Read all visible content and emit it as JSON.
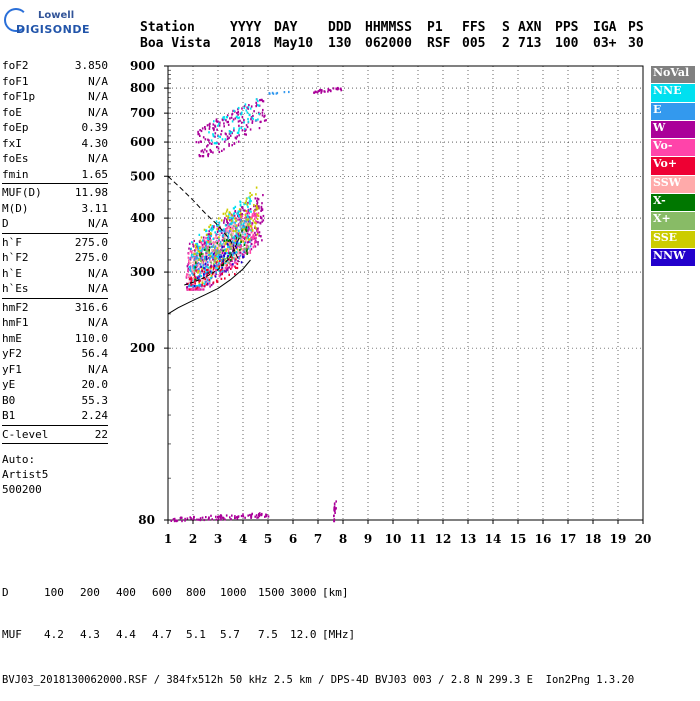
{
  "logo": {
    "line1": "Lowell",
    "line2": "DIGISONDE"
  },
  "header": {
    "labels": [
      "Station",
      "YYYY",
      "DAY",
      "DDD",
      "HHMMSS",
      "P1",
      "FFS",
      "S",
      "AXN",
      "PPS",
      "IGA",
      "PS"
    ],
    "values": [
      "Boa Vista",
      "2018",
      "May10",
      "130",
      "062000",
      "RSF",
      "005",
      "2",
      "713",
      "100",
      "03+",
      "30"
    ]
  },
  "params_group1": [
    {
      "name": "foF2",
      "value": "3.850"
    },
    {
      "name": "foF1",
      "value": "N/A"
    },
    {
      "name": "foF1p",
      "value": "N/A"
    },
    {
      "name": "foE",
      "value": "N/A"
    },
    {
      "name": "foEp",
      "value": "0.39"
    },
    {
      "name": "fxI",
      "value": "4.30"
    },
    {
      "name": "foEs",
      "value": "N/A"
    },
    {
      "name": "fmin",
      "value": "1.65"
    }
  ],
  "params_group2": [
    {
      "name": "MUF(D)",
      "value": "11.98"
    },
    {
      "name": "M(D)",
      "value": "3.11"
    },
    {
      "name": "D",
      "value": "N/A"
    }
  ],
  "params_group3": [
    {
      "name": "h`F",
      "value": "275.0"
    },
    {
      "name": "h`F2",
      "value": "275.0"
    },
    {
      "name": "h`E",
      "value": "N/A"
    },
    {
      "name": "h`Es",
      "value": "N/A"
    }
  ],
  "params_group4": [
    {
      "name": "hmF2",
      "value": "316.6"
    },
    {
      "name": "hmF1",
      "value": "N/A"
    },
    {
      "name": "hmE",
      "value": "110.0"
    },
    {
      "name": "yF2",
      "value": "56.4"
    },
    {
      "name": "yF1",
      "value": "N/A"
    },
    {
      "name": "yE",
      "value": "20.0"
    },
    {
      "name": "B0",
      "value": "55.3"
    },
    {
      "name": "B1",
      "value": "2.24"
    }
  ],
  "params_group5": [
    {
      "name": "C-level",
      "value": "22"
    }
  ],
  "autoscale": {
    "line1": "Auto:",
    "line2": "Artist5",
    "line3": "500200"
  },
  "legend": [
    {
      "label": "NoVal",
      "color": "#808080"
    },
    {
      "label": "NNE",
      "color": "#00e0f0"
    },
    {
      "label": "E",
      "color": "#3399ee"
    },
    {
      "label": "W",
      "color": "#aa0099"
    },
    {
      "label": "Vo-",
      "color": "#ff44aa"
    },
    {
      "label": "Vo+",
      "color": "#ee0033"
    },
    {
      "label": "SSW",
      "color": "#ffaaaa"
    },
    {
      "label": "X-",
      "color": "#007700"
    },
    {
      "label": "X+",
      "color": "#88bb66"
    },
    {
      "label": "SSE",
      "color": "#cccc00"
    },
    {
      "label": "NNW",
      "color": "#2200cc"
    }
  ],
  "muf_table": {
    "d_label": "D",
    "d_values": [
      "100",
      "200",
      "400",
      "600",
      "800",
      "1000",
      "1500",
      "3000"
    ],
    "d_unit": "[km]",
    "muf_label": "MUF",
    "muf_values": [
      "4.2",
      "4.3",
      "4.4",
      "4.7",
      "5.1",
      "5.7",
      "7.5",
      "12.0"
    ],
    "muf_unit": "[MHz]"
  },
  "footer": "BVJ03_2018130062000.RSF / 384fx512h 50 kHz 2.5 km / DPS-4D BVJ03 003 / 2.8 N 299.3 E  Ion2Png 1.3.20",
  "chart_data": {
    "type": "scatter",
    "title": "",
    "xlabel": "",
    "ylabel": "",
    "xlim": [
      1,
      20
    ],
    "ylim": [
      80,
      900
    ],
    "y_scale": "log",
    "xticks": [
      1,
      2,
      3,
      4,
      5,
      6,
      7,
      8,
      9,
      10,
      11,
      12,
      13,
      14,
      15,
      16,
      17,
      18,
      19,
      20
    ],
    "yticks": [
      80,
      200,
      300,
      400,
      500,
      600,
      700,
      800,
      900
    ],
    "grid": true,
    "legend_position": "right",
    "profile_curve": [
      {
        "f": 1.0,
        "h": 500
      },
      {
        "f": 1.5,
        "h": 470
      },
      {
        "f": 2.0,
        "h": 440
      },
      {
        "f": 2.5,
        "h": 410
      },
      {
        "f": 3.0,
        "h": 385
      },
      {
        "f": 3.5,
        "h": 355
      },
      {
        "f": 3.85,
        "h": 316.6
      }
    ],
    "lower_curve": [
      {
        "f": 1.0,
        "h": 240
      },
      {
        "f": 1.4,
        "h": 248
      },
      {
        "f": 2.0,
        "h": 258
      },
      {
        "f": 2.5,
        "h": 266
      },
      {
        "f": 3.0,
        "h": 275
      },
      {
        "f": 3.5,
        "h": 288
      },
      {
        "f": 4.0,
        "h": 305
      },
      {
        "f": 4.3,
        "h": 320
      }
    ],
    "trace_curve": [
      {
        "f": 1.65,
        "h": 280
      },
      {
        "f": 2.0,
        "h": 284
      },
      {
        "f": 2.5,
        "h": 292
      },
      {
        "f": 3.0,
        "h": 304
      },
      {
        "f": 3.5,
        "h": 325
      },
      {
        "f": 3.85,
        "h": 360
      }
    ],
    "echo_clusters": [
      {
        "series": "W",
        "fmin": 1.7,
        "fmax": 4.8,
        "hmin": 275,
        "hmax": 480,
        "n": 420
      },
      {
        "series": "Vo-",
        "fmin": 1.7,
        "fmax": 4.6,
        "hmin": 275,
        "hmax": 450,
        "n": 260
      },
      {
        "series": "NNE",
        "fmin": 1.8,
        "fmax": 4.3,
        "hmin": 280,
        "hmax": 480,
        "n": 220
      },
      {
        "series": "E",
        "fmin": 1.8,
        "fmax": 4.3,
        "hmin": 280,
        "hmax": 430,
        "n": 140
      },
      {
        "series": "SSW",
        "fmin": 1.8,
        "fmax": 4.2,
        "hmin": 285,
        "hmax": 420,
        "n": 120
      },
      {
        "series": "SSE",
        "fmin": 2.0,
        "fmax": 4.6,
        "hmin": 285,
        "hmax": 500,
        "n": 120
      },
      {
        "series": "X+",
        "fmin": 2.0,
        "fmax": 4.2,
        "hmin": 290,
        "hmax": 420,
        "n": 60
      },
      {
        "series": "X-",
        "fmin": 2.0,
        "fmax": 4.2,
        "hmin": 290,
        "hmax": 400,
        "n": 40
      },
      {
        "series": "NNW",
        "fmin": 2.0,
        "fmax": 4.0,
        "hmin": 280,
        "hmax": 380,
        "n": 40
      },
      {
        "series": "Vo+",
        "fmin": 1.7,
        "fmax": 3.8,
        "hmin": 275,
        "hmax": 340,
        "n": 60
      },
      {
        "series": "W",
        "fmin": 2.1,
        "fmax": 4.9,
        "hmin": 560,
        "hmax": 800,
        "n": 170
      },
      {
        "series": "NNE",
        "fmin": 2.6,
        "fmax": 4.7,
        "hmin": 600,
        "hmax": 790,
        "n": 60
      },
      {
        "series": "E",
        "fmin": 4.9,
        "fmax": 5.8,
        "hmin": 780,
        "hmax": 790,
        "n": 8
      },
      {
        "series": "W",
        "fmin": 6.8,
        "fmax": 7.9,
        "hmin": 785,
        "hmax": 810,
        "n": 30
      },
      {
        "series": "W",
        "fmin": 1.0,
        "fmax": 5.0,
        "hmin": 80,
        "hmax": 84,
        "n": 90
      },
      {
        "series": "W",
        "fmin": 7.6,
        "fmax": 7.7,
        "hmin": 80,
        "hmax": 95,
        "n": 18
      }
    ]
  }
}
